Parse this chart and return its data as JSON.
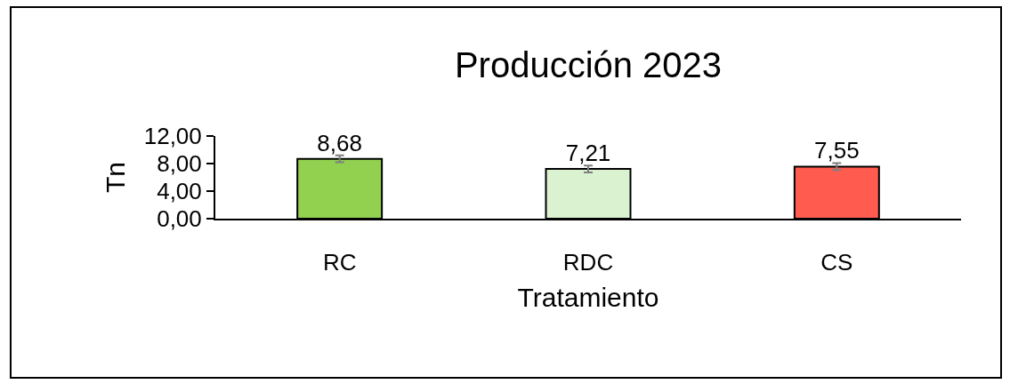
{
  "chart_data": {
    "type": "bar",
    "title": "Producción 2023",
    "xlabel": "Tratamiento",
    "ylabel": "Tn",
    "categories": [
      "RC",
      "RDC",
      "CS"
    ],
    "values": [
      8.68,
      7.21,
      7.55
    ],
    "colors": [
      "#92d050",
      "#daf2d0",
      "#ff5b4f"
    ],
    "errors": [
      0.5,
      0.5,
      0.5
    ],
    "value_labels": [
      "8,68",
      "7,21",
      "7,55"
    ],
    "ylim": [
      0,
      12
    ],
    "yticks": [
      {
        "value": 0,
        "label": "0,00"
      },
      {
        "value": 4,
        "label": "4,00"
      },
      {
        "value": 8,
        "label": "8,00"
      },
      {
        "value": 12,
        "label": "12,00"
      }
    ],
    "legend": false
  }
}
